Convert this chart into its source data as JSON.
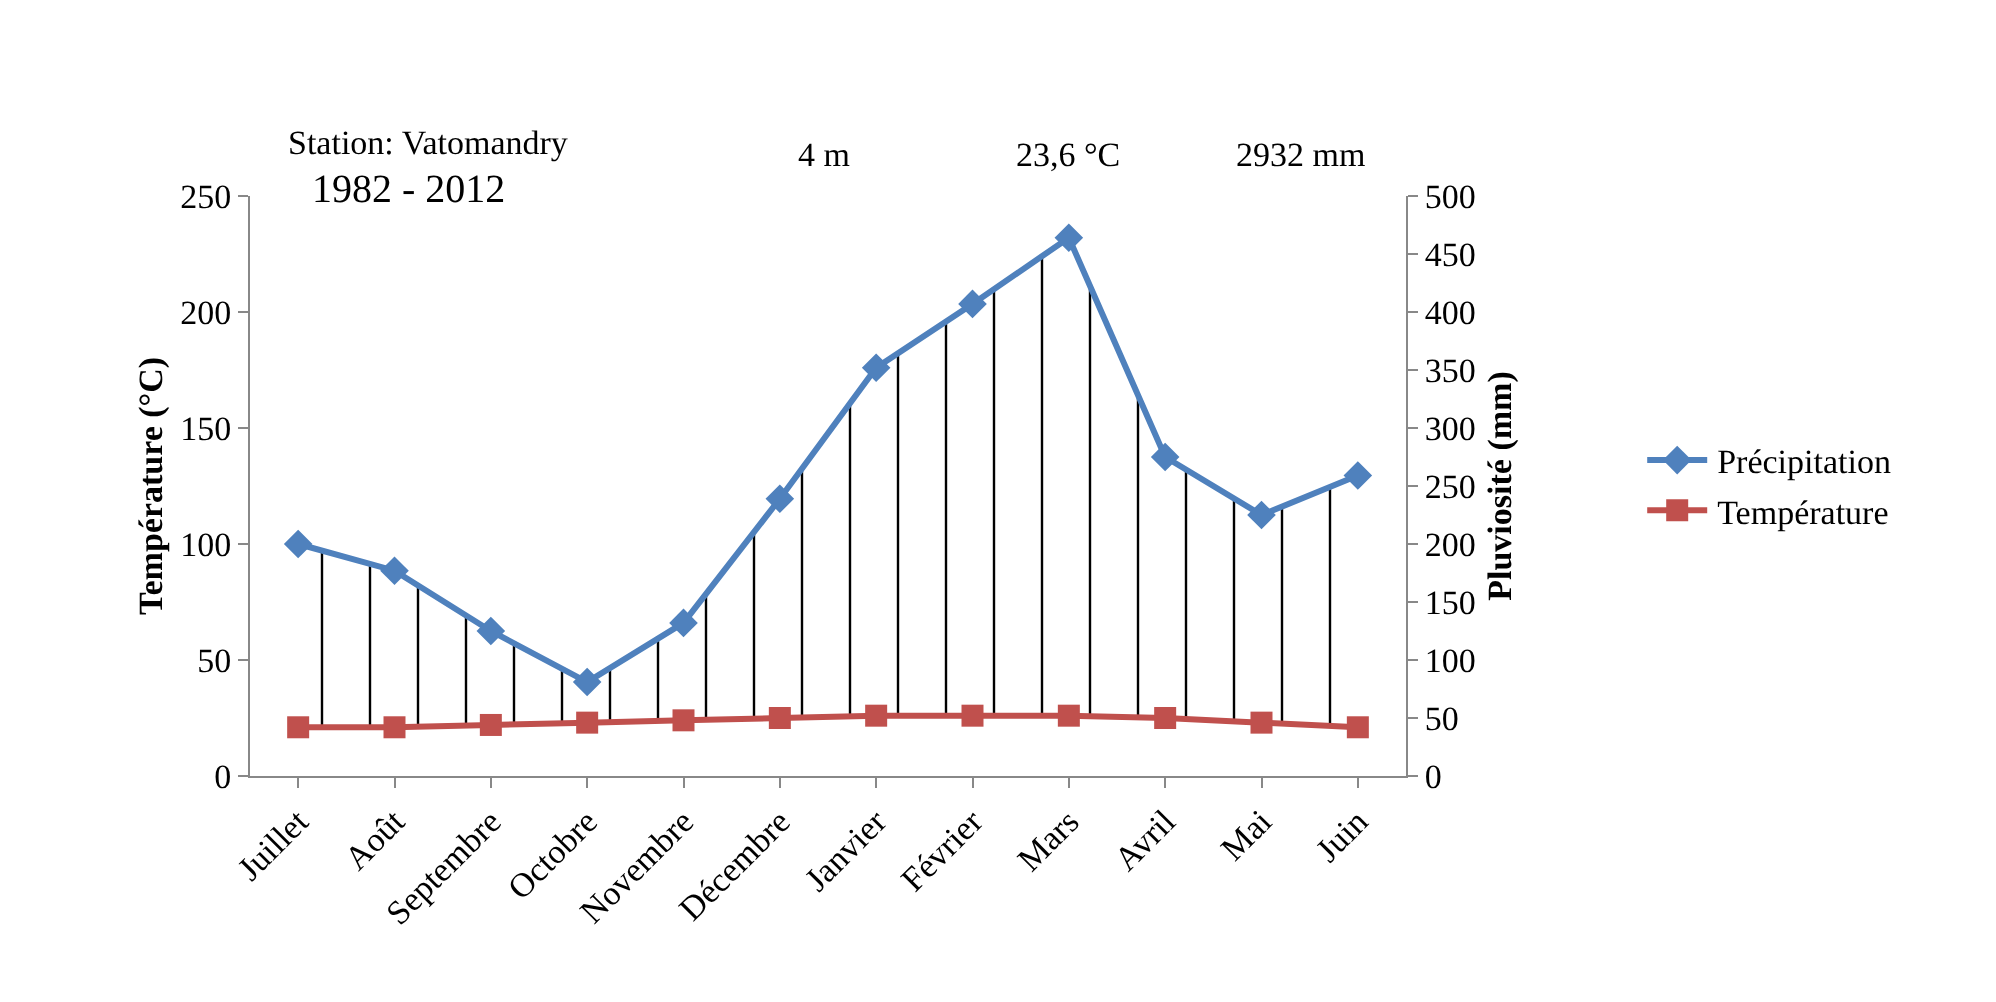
{
  "chart_data": {
    "type": "line",
    "categories": [
      "Juillet",
      "Août",
      "Septembre",
      "Octobre",
      "Novembre",
      "Décembre",
      "Janvier",
      "Février",
      "Mars",
      "Avril",
      "Mai",
      "Juin"
    ],
    "ylabel": "Température (°C)",
    "y2label": "Pluviosité (mm)",
    "ylim": [
      0,
      250
    ],
    "yticks": [
      0,
      50,
      100,
      150,
      200,
      250
    ],
    "y2lim": [
      0,
      500
    ],
    "y2ticks": [
      0,
      50,
      100,
      150,
      200,
      250,
      300,
      350,
      400,
      450,
      500
    ],
    "series": [
      {
        "name": "Température",
        "color": "#c0504d",
        "marker": "square",
        "values": [
          21,
          21,
          22,
          23,
          24,
          25,
          26,
          26,
          26,
          25,
          23,
          21
        ]
      },
      {
        "name": "Précipitation",
        "color": "#4f81bd",
        "marker": "diamond",
        "axis": "y2",
        "values": [
          200,
          177,
          125,
          81,
          132,
          239,
          352,
          407,
          464,
          275,
          225,
          259
        ],
        "lower": [
          42,
          42,
          44,
          46,
          48,
          50,
          52,
          52,
          52,
          50,
          46,
          42
        ],
        "upper": [
          200,
          177,
          125,
          81,
          132,
          239,
          352,
          407,
          464,
          275,
          225,
          259
        ]
      }
    ],
    "annotations": [
      "Station: Vatomandry",
      "1982 - 2012",
      "4 m",
      "23,6 °C",
      "2932 mm"
    ],
    "legend": "right",
    "grid": false
  }
}
